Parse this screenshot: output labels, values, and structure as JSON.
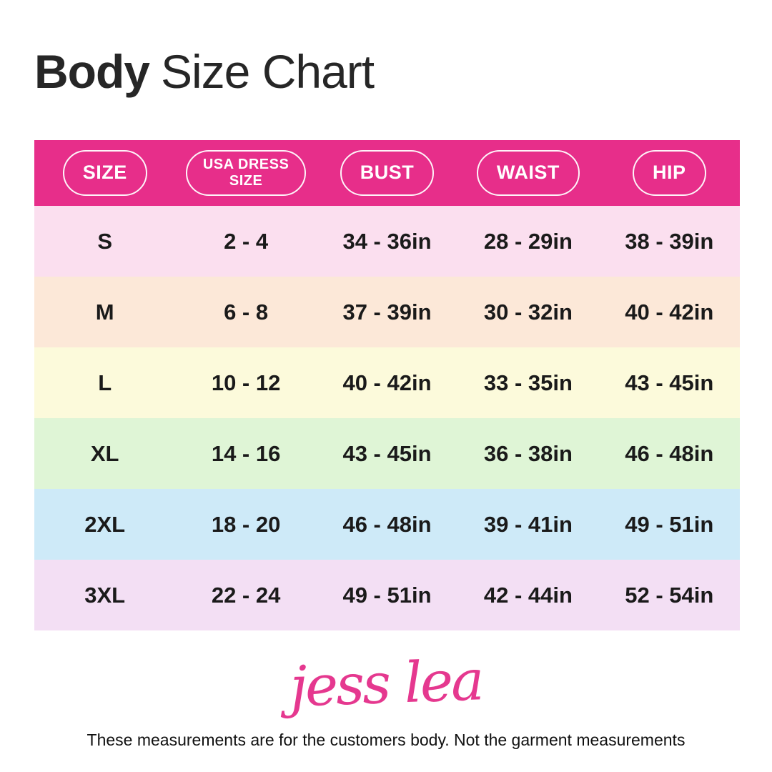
{
  "title": {
    "bold": "Body",
    "rest": "Size Chart"
  },
  "chart_data": {
    "type": "table",
    "title": "Body Size Chart",
    "columns": [
      "SIZE",
      "USA DRESS SIZE",
      "BUST",
      "WAIST",
      "HIP"
    ],
    "rows": [
      [
        "S",
        "2 - 4",
        "34 - 36in",
        "28 - 29in",
        "38 - 39in"
      ],
      [
        "M",
        "6 - 8",
        "37 - 39in",
        "30 - 32in",
        "40 - 42in"
      ],
      [
        "L",
        "10 - 12",
        "40 - 42in",
        "33 - 35in",
        "43 - 45in"
      ],
      [
        "XL",
        "14 - 16",
        "43 - 45in",
        "36 - 38in",
        "46 - 48in"
      ],
      [
        "2XL",
        "18 - 20",
        "46 - 48in",
        "39 - 41in",
        "49 - 51in"
      ],
      [
        "3XL",
        "22 - 24",
        "49 - 51in",
        "42 - 44in",
        "52 - 54in"
      ]
    ]
  },
  "styles": {
    "header_bg": "#E72E8A",
    "row_colors": [
      "#FBDFEF",
      "#FCE8D8",
      "#FCFADB",
      "#DFF5D6",
      "#CEEAF8",
      "#F3DFF4"
    ],
    "signature_color": "#E5388F"
  },
  "signature": "jess lea",
  "footer": "These measurements are for the customers body. Not the garment measurements"
}
